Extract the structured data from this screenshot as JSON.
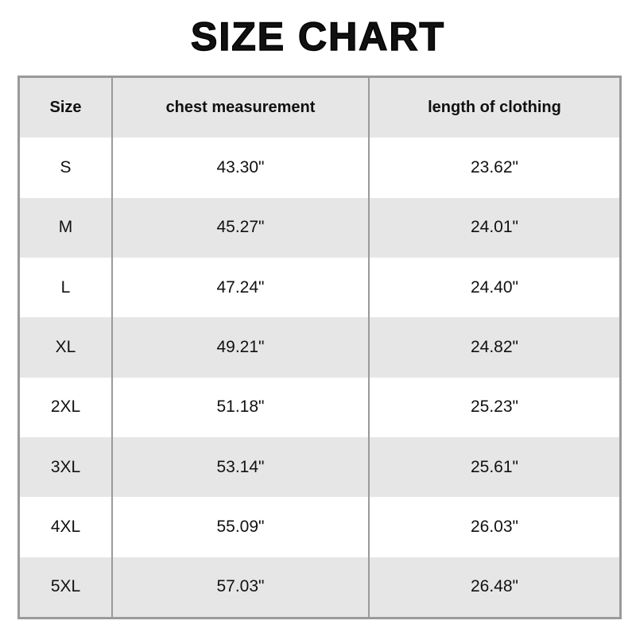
{
  "header": {
    "title": "SIZE CHART"
  },
  "table": {
    "header": [
      "Size",
      "chest measurement",
      "length of clothing"
    ],
    "rows": [
      [
        "S",
        "43.30\"",
        "23.62\""
      ],
      [
        "M",
        "45.27\"",
        "24.01\""
      ],
      [
        "L",
        "47.24\"",
        "24.40\""
      ],
      [
        "XL",
        "49.21\"",
        "24.82\""
      ],
      [
        "2XL",
        "51.18\"",
        "25.23\""
      ],
      [
        "3XL",
        "53.14\"",
        "25.61\""
      ],
      [
        "4XL",
        "55.09\"",
        "26.03\""
      ],
      [
        "5XL",
        "57.03\"",
        "26.48\""
      ]
    ]
  }
}
